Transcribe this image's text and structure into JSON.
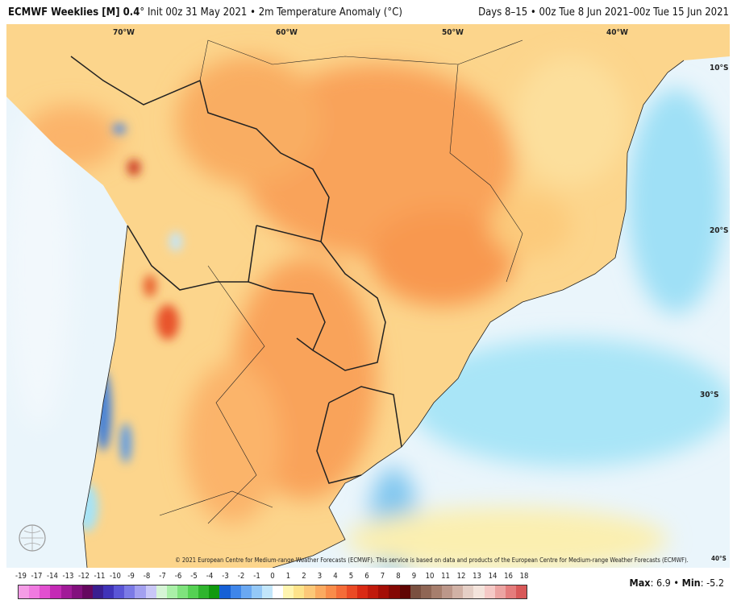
{
  "header": {
    "model": "ECMWF Weeklies [M] 0.4",
    "degree": "°",
    "init": "Init 00z 31 May 2021",
    "separator": "•",
    "variable": "2m Temperature Anomaly (°C)",
    "valid": "Days 8–15 • 00z Tue 8 Jun 2021–00z Tue 15 Jun 2021"
  },
  "map": {
    "longitude_labels": [
      "70°W",
      "60°W",
      "50°W",
      "40°W"
    ],
    "latitude_labels": [
      "10°S",
      "20°S",
      "30°S",
      "40°S"
    ],
    "colors": {
      "ocean": "#eaf5fb",
      "land_base": "#fcd58c",
      "warm": "#f9a35a",
      "hot": "#e8532a",
      "cold": "#3f7fd9",
      "cool_ocean": "#a6e3f7"
    }
  },
  "copyright": "© 2021 European Centre for Medium-range Weather Forecasts (ECMWF). This service is based on data and products of the European Centre for Medium-range Weather Forecasts (ECMWF).",
  "logo": "WeatherBELL",
  "colorbar": {
    "ticks": [
      "-19",
      "-17",
      "-14",
      "-13",
      "-12",
      "-11",
      "-10",
      "-9",
      "-8",
      "-7",
      "-6",
      "-5",
      "-4",
      "-3",
      "-2",
      "-1",
      "0",
      "1",
      "2",
      "3",
      "4",
      "5",
      "6",
      "7",
      "8",
      "9",
      "10",
      "11",
      "12",
      "13",
      "14",
      "16",
      "18"
    ],
    "colors": [
      "#f59ce6",
      "#f07ae0",
      "#e24fd0",
      "#c42ab5",
      "#a11a98",
      "#82107d",
      "#65085f",
      "#3a1e90",
      "#3f33b8",
      "#5a55d6",
      "#7b7ae6",
      "#a3a0f0",
      "#c9c7f7",
      "#d6f5d6",
      "#aaf0a8",
      "#7fe37d",
      "#55d153",
      "#2fb52d",
      "#109a0e",
      "#1660d6",
      "#3f86ea",
      "#6aa8f2",
      "#94c8f7",
      "#c2e6fb",
      "#ffffff",
      "#fff5b0",
      "#fde38a",
      "#fcc878",
      "#fbaa60",
      "#f98c4a",
      "#f46c38",
      "#ea4a25",
      "#d92a14",
      "#c01a0c",
      "#a40e06",
      "#840804",
      "#600503",
      "#7a5040",
      "#8f6655",
      "#a67e6d",
      "#bc978a",
      "#d1b2a6",
      "#e5cfc6",
      "#f4e4dc",
      "#f5c9c6",
      "#eca4a2",
      "#e47c7c",
      "#d85858"
    ]
  },
  "stats": {
    "max_label": "Max",
    "max": "6.9",
    "min_label": "Min",
    "min": "-5.2",
    "separator": "•"
  }
}
